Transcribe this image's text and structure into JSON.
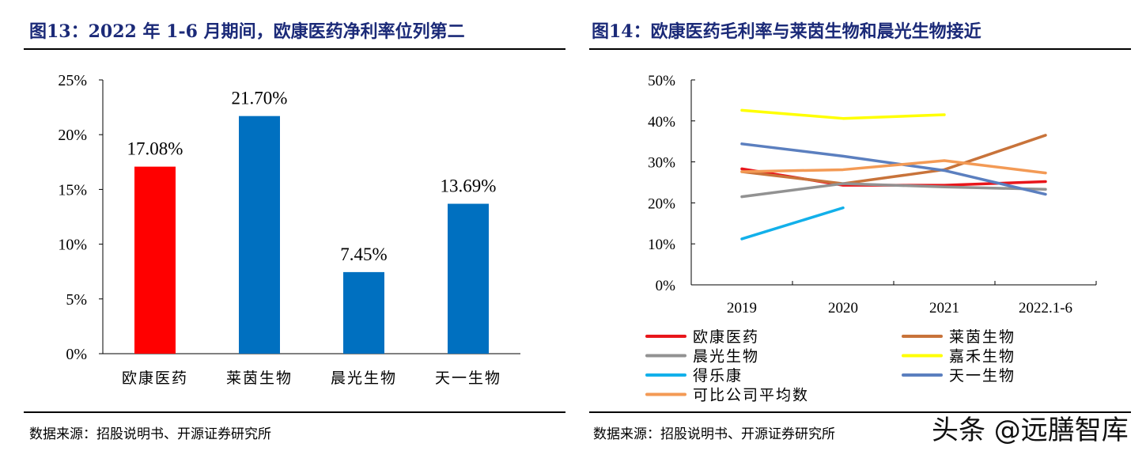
{
  "left": {
    "title": "图13：2022 年 1-6 月期间，欧康医药净利率位列第二",
    "source": "数据来源：招股说明书、开源证券研究所"
  },
  "right": {
    "title": "图14：欧康医药毛利率与莱茵生物和晨光生物接近",
    "source": "数据来源：招股说明书、开源证券研究所"
  },
  "watermark": "头条 @远膳智库",
  "chart_data": [
    {
      "type": "bar",
      "categories": [
        "欧康医药",
        "莱茵生物",
        "晨光生物",
        "天一生物"
      ],
      "values": [
        17.08,
        21.7,
        7.45,
        13.69
      ],
      "data_labels": [
        "17.08%",
        "21.70%",
        "7.45%",
        "13.69%"
      ],
      "colors": [
        "#ff0000",
        "#0070c0",
        "#0070c0",
        "#0070c0"
      ],
      "ylim": [
        0,
        25
      ],
      "yticks": [
        "0%",
        "5%",
        "10%",
        "15%",
        "20%",
        "25%"
      ],
      "grid": false
    },
    {
      "type": "line",
      "categories": [
        "2019",
        "2020",
        "2021",
        "2022.1-6"
      ],
      "ylim": [
        0,
        50
      ],
      "yticks": [
        "0%",
        "10%",
        "20%",
        "30%",
        "40%",
        "50%"
      ],
      "grid": false,
      "legend_position": "bottom",
      "series": [
        {
          "name": "欧康医药",
          "color": "#e8161b",
          "values": [
            28.3,
            24.3,
            24.3,
            25.2
          ]
        },
        {
          "name": "莱茵生物",
          "color": "#c8733a",
          "values": [
            27.6,
            24.7,
            28.1,
            36.5
          ]
        },
        {
          "name": "晨光生物",
          "color": "#929292",
          "values": [
            21.5,
            24.7,
            23.9,
            23.3
          ]
        },
        {
          "name": "嘉禾生物",
          "color": "#ffff00",
          "values": [
            42.6,
            40.6,
            41.5,
            null
          ]
        },
        {
          "name": "得乐康",
          "color": "#12b0ea",
          "values": [
            11.2,
            18.8,
            null,
            null
          ]
        },
        {
          "name": "天一生物",
          "color": "#5b7fbf",
          "values": [
            34.4,
            31.4,
            27.9,
            22.1
          ]
        },
        {
          "name": "可比公司平均数",
          "color": "#f39a55",
          "values": [
            27.6,
            28.1,
            30.3,
            27.3
          ]
        }
      ]
    }
  ]
}
